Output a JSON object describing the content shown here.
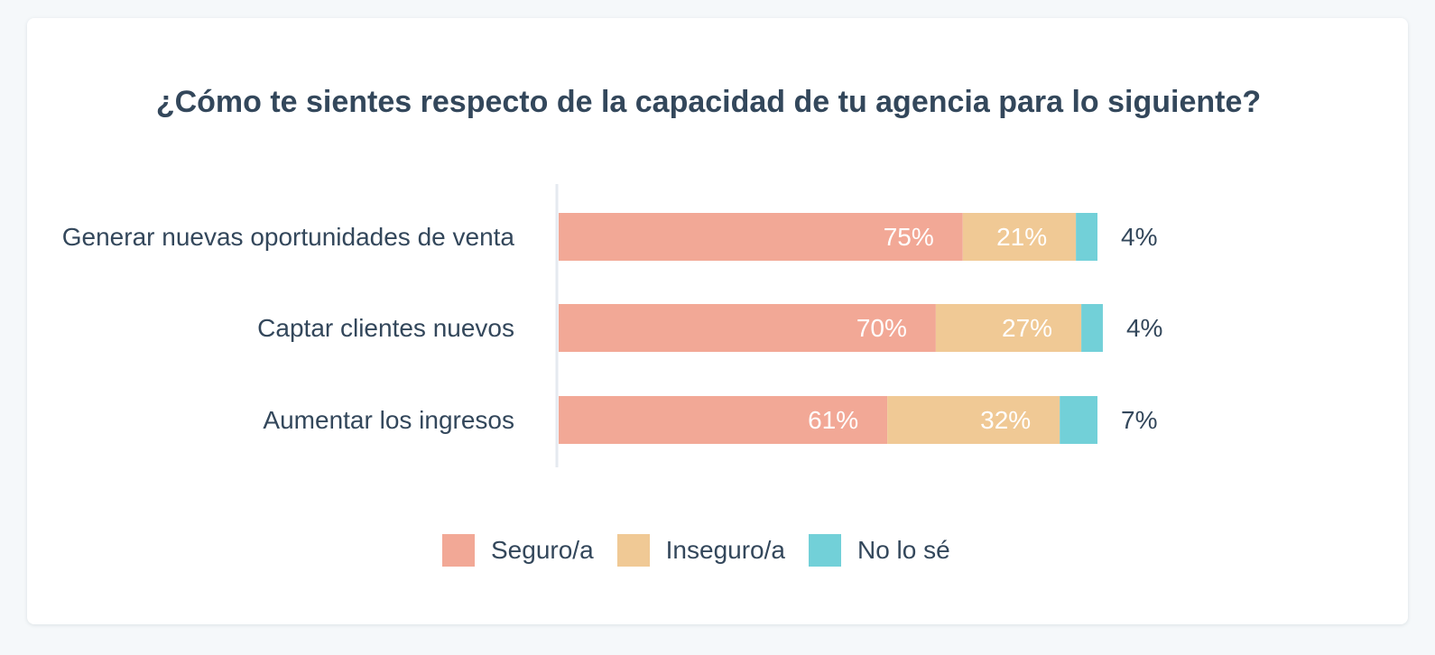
{
  "chart_data": {
    "type": "bar",
    "orientation": "horizontal",
    "stacked": true,
    "title": "¿Cómo te sientes respecto de la capacidad de tu agencia para lo siguiente?",
    "categories": [
      "Generar nuevas oportunidades de venta",
      "Captar clientes nuevos",
      "Aumentar los ingresos"
    ],
    "series": [
      {
        "name": "Seguro/a",
        "color": "#f2a896",
        "values": [
          75,
          70,
          61
        ],
        "labels": [
          "75%",
          "70%",
          "61%"
        ]
      },
      {
        "name": "Inseguro/a",
        "color": "#f0c995",
        "values": [
          21,
          27,
          32
        ],
        "labels": [
          "21%",
          "27%",
          "32%"
        ]
      },
      {
        "name": "No lo sé",
        "color": "#72d0d8",
        "values": [
          4,
          4,
          7
        ],
        "labels": [
          "4%",
          "4%",
          "7%"
        ]
      }
    ],
    "xlim": [
      0,
      100
    ],
    "legend_position": "bottom",
    "grid": false
  },
  "legend": {
    "items": [
      {
        "label": "Seguro/a",
        "color": "#f2a896"
      },
      {
        "label": "Inseguro/a",
        "color": "#f0c995"
      },
      {
        "label": "No lo sé",
        "color": "#72d0d8"
      }
    ]
  }
}
